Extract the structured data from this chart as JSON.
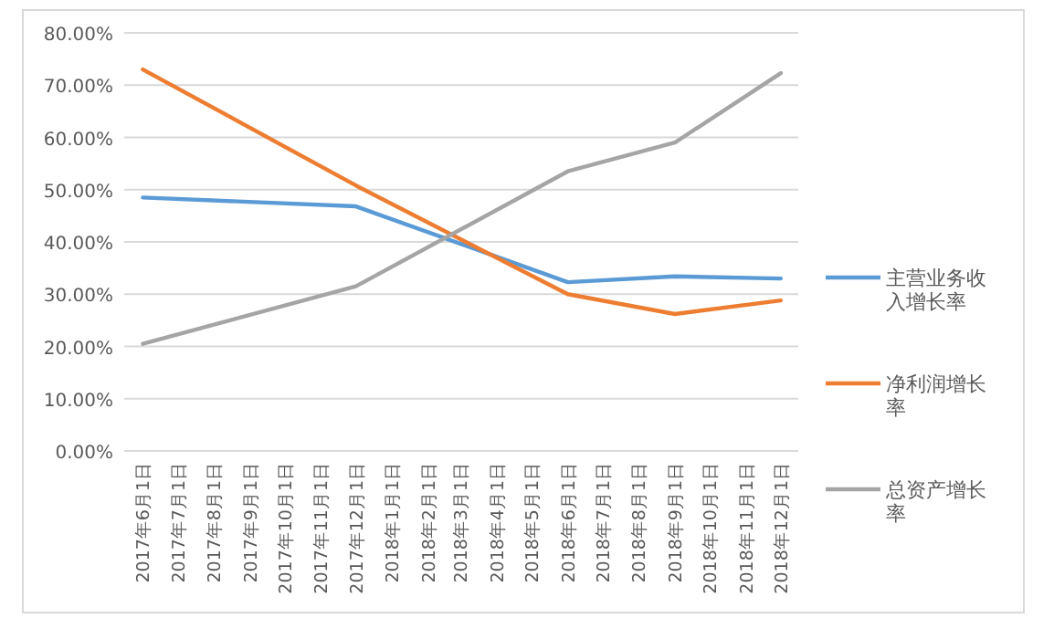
{
  "chart_data": {
    "type": "line",
    "x": [
      "2017-06-01",
      "2017-12-01",
      "2018-06-01",
      "2018-09-01",
      "2018-12-01"
    ],
    "series": [
      {
        "name": "主营业务收入增长率",
        "color": "#5b9bd5",
        "values": [
          48.5,
          46.8,
          32.3,
          33.4,
          33.0
        ]
      },
      {
        "name": "净利润增长率",
        "color": "#ed7d31",
        "values": [
          73.0,
          50.8,
          30.0,
          26.2,
          28.8
        ]
      },
      {
        "name": "总资产增长率",
        "color": "#a5a5a5",
        "values": [
          20.5,
          31.5,
          53.5,
          59.0,
          72.3
        ]
      }
    ],
    "xlim": [
      "2017-05-16",
      "2018-12-16"
    ],
    "xticks": [
      {
        "value": "2017-06-01",
        "label": "2017年6月1日"
      },
      {
        "value": "2017-07-01",
        "label": "2017年7月1日"
      },
      {
        "value": "2017-08-01",
        "label": "2017年8月1日"
      },
      {
        "value": "2017-09-01",
        "label": "2017年9月1日"
      },
      {
        "value": "2017-10-01",
        "label": "2017年10月1日"
      },
      {
        "value": "2017-11-01",
        "label": "2017年11月1日"
      },
      {
        "value": "2017-12-01",
        "label": "2017年12月1日"
      },
      {
        "value": "2018-01-01",
        "label": "2018年1月1日"
      },
      {
        "value": "2018-02-01",
        "label": "2018年2月1日"
      },
      {
        "value": "2018-03-01",
        "label": "2018年3月1日"
      },
      {
        "value": "2018-04-01",
        "label": "2018年4月1日"
      },
      {
        "value": "2018-05-01",
        "label": "2018年5月1日"
      },
      {
        "value": "2018-06-01",
        "label": "2018年6月1日"
      },
      {
        "value": "2018-07-01",
        "label": "2018年7月1日"
      },
      {
        "value": "2018-08-01",
        "label": "2018年8月1日"
      },
      {
        "value": "2018-09-01",
        "label": "2018年9月1日"
      },
      {
        "value": "2018-10-01",
        "label": "2018年10月1日"
      },
      {
        "value": "2018-11-01",
        "label": "2018年11月1日"
      },
      {
        "value": "2018-12-01",
        "label": "2018年12月1日"
      }
    ],
    "ylim": [
      0,
      80
    ],
    "yticks": [
      {
        "value": 0,
        "label": "0.00%"
      },
      {
        "value": 10,
        "label": "10.00%"
      },
      {
        "value": 20,
        "label": "20.00%"
      },
      {
        "value": 30,
        "label": "30.00%"
      },
      {
        "value": 40,
        "label": "40.00%"
      },
      {
        "value": 50,
        "label": "50.00%"
      },
      {
        "value": 60,
        "label": "60.00%"
      },
      {
        "value": 70,
        "label": "70.00%"
      },
      {
        "value": 80,
        "label": "80.00%"
      }
    ],
    "grid": "y",
    "legend": "right",
    "line_style": "solid"
  }
}
